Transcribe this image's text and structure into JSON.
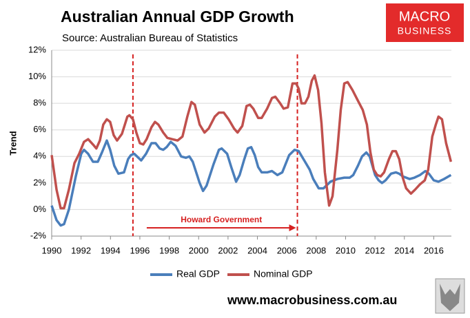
{
  "chart_data": {
    "type": "line",
    "title": "Australian Annual GDP Growth",
    "subtitle": "Source: Australian Bureau of Statistics",
    "y_label": "Trend",
    "logo": [
      "MACRO",
      "BUSINESS"
    ],
    "footer": "www.macrobusiness.com.au",
    "annotation": "Howard Government",
    "vlines": [
      1995.53,
      2006.72
    ],
    "vline_color": "#d62020",
    "xlim": [
      1990,
      2017.2
    ],
    "xticks": [
      1990,
      1992,
      1994,
      1996,
      1998,
      2000,
      2002,
      2004,
      2006,
      2008,
      2010,
      2012,
      2014,
      2016
    ],
    "ylim": [
      -2,
      12
    ],
    "yticks": [
      {
        "value": -2,
        "label": "-2%"
      },
      {
        "value": 0,
        "label": "0%"
      },
      {
        "value": 2,
        "label": "2%"
      },
      {
        "value": 4,
        "label": "4%"
      },
      {
        "value": 6,
        "label": "6%"
      },
      {
        "value": 8,
        "label": "8%"
      },
      {
        "value": 10,
        "label": "10%"
      },
      {
        "value": 12,
        "label": "12%"
      }
    ],
    "grid": true,
    "legend": "bottom",
    "series": [
      {
        "name": "Real GDP",
        "color": "#4a7ebb",
        "x": [
          1990.0,
          1990.33,
          1990.61,
          1990.84,
          1991.17,
          1991.64,
          1992.01,
          1992.2,
          1992.48,
          1992.81,
          1993.14,
          1993.42,
          1993.75,
          1993.98,
          1994.26,
          1994.54,
          1994.92,
          1995.2,
          1995.39,
          1995.62,
          1996.09,
          1996.42,
          1996.79,
          1997.07,
          1997.35,
          1997.59,
          1997.82,
          1998.1,
          1998.43,
          1998.81,
          1999.13,
          1999.37,
          1999.6,
          2000.07,
          2000.3,
          2000.54,
          2001.01,
          2001.38,
          2001.57,
          2001.94,
          2002.22,
          2002.55,
          2002.79,
          2003.11,
          2003.35,
          2003.58,
          2003.82,
          2004.05,
          2004.29,
          2004.66,
          2004.99,
          2005.36,
          2005.69,
          2006.16,
          2006.53,
          2006.81,
          2007.24,
          2007.56,
          2007.8,
          2008.17,
          2008.5,
          2008.97,
          2009.44,
          2009.91,
          2010.28,
          2010.52,
          2010.84,
          2011.12,
          2011.41,
          2011.64,
          2012.01,
          2012.25,
          2012.48,
          2012.72,
          2013.09,
          2013.42,
          2013.65,
          2013.89,
          2014.36,
          2014.68,
          2015.06,
          2015.43,
          2015.67,
          2016.0,
          2016.32,
          2016.7,
          2017.17
        ],
        "values": [
          0.3,
          -0.8,
          -1.2,
          -1.1,
          0.0,
          2.5,
          4.2,
          4.5,
          4.2,
          3.6,
          3.6,
          4.3,
          5.2,
          4.5,
          3.3,
          2.7,
          2.8,
          3.8,
          4.1,
          4.2,
          3.7,
          4.2,
          5.0,
          5.0,
          4.6,
          4.5,
          4.7,
          5.1,
          4.8,
          4.0,
          3.9,
          4.0,
          3.6,
          2.0,
          1.4,
          1.8,
          3.4,
          4.5,
          4.6,
          4.2,
          3.2,
          2.1,
          2.6,
          3.8,
          4.6,
          4.7,
          4.1,
          3.2,
          2.8,
          2.8,
          2.9,
          2.6,
          2.8,
          4.1,
          4.5,
          4.4,
          3.6,
          3.0,
          2.3,
          1.6,
          1.6,
          2.1,
          2.3,
          2.4,
          2.4,
          2.6,
          3.3,
          4.0,
          4.3,
          4.0,
          2.6,
          2.2,
          2.0,
          2.2,
          2.7,
          2.8,
          2.7,
          2.5,
          2.3,
          2.4,
          2.6,
          2.9,
          2.7,
          2.2,
          2.1,
          2.3,
          2.6
        ]
      },
      {
        "name": "Nominal GDP",
        "color": "#c0504d",
        "x": [
          1990.0,
          1990.33,
          1990.61,
          1990.84,
          1991.17,
          1991.55,
          1991.87,
          1992.2,
          1992.48,
          1992.81,
          1993.04,
          1993.28,
          1993.51,
          1993.75,
          1993.98,
          1994.22,
          1994.45,
          1994.78,
          1995.15,
          1995.29,
          1995.53,
          1995.76,
          1996.0,
          1996.23,
          1996.46,
          1996.79,
          1997.03,
          1997.26,
          1997.59,
          1997.87,
          1998.2,
          1998.57,
          1998.9,
          1999.23,
          1999.51,
          1999.74,
          2000.07,
          2000.4,
          2000.68,
          2001.1,
          2001.38,
          2001.71,
          2002.04,
          2002.41,
          2002.65,
          2002.97,
          2003.26,
          2003.49,
          2003.72,
          2004.05,
          2004.29,
          2004.66,
          2004.99,
          2005.22,
          2005.55,
          2005.78,
          2006.07,
          2006.39,
          2006.63,
          2006.81,
          2007.0,
          2007.24,
          2007.47,
          2007.7,
          2007.89,
          2008.13,
          2008.36,
          2008.59,
          2008.88,
          2009.11,
          2009.44,
          2009.67,
          2009.91,
          2010.14,
          2010.47,
          2010.84,
          2011.17,
          2011.45,
          2011.69,
          2011.92,
          2012.15,
          2012.39,
          2012.62,
          2012.95,
          2013.19,
          2013.42,
          2013.65,
          2013.89,
          2014.12,
          2014.45,
          2014.73,
          2015.06,
          2015.39,
          2015.62,
          2015.9,
          2016.14,
          2016.32,
          2016.56,
          2016.84,
          2017.17
        ],
        "values": [
          4.1,
          1.5,
          0.1,
          0.1,
          1.5,
          3.5,
          4.2,
          5.1,
          5.3,
          4.9,
          4.6,
          5.2,
          6.4,
          6.8,
          6.6,
          5.6,
          5.2,
          5.7,
          7.0,
          7.1,
          6.8,
          5.8,
          5.0,
          4.9,
          5.3,
          6.2,
          6.6,
          6.4,
          5.8,
          5.4,
          5.3,
          5.2,
          5.5,
          7.0,
          8.1,
          7.9,
          6.4,
          5.8,
          6.1,
          7.0,
          7.3,
          7.3,
          6.8,
          6.1,
          5.8,
          6.3,
          7.8,
          7.9,
          7.6,
          6.9,
          6.9,
          7.6,
          8.4,
          8.5,
          8.0,
          7.6,
          7.7,
          9.5,
          9.5,
          9.1,
          8.0,
          8.0,
          8.5,
          9.7,
          10.1,
          9.0,
          6.5,
          2.8,
          0.3,
          1.0,
          4.5,
          7.5,
          9.5,
          9.6,
          9.0,
          8.2,
          7.5,
          6.4,
          4.3,
          3.0,
          2.6,
          2.5,
          2.8,
          3.8,
          4.4,
          4.4,
          3.8,
          2.4,
          1.6,
          1.2,
          1.5,
          1.9,
          2.2,
          3.0,
          5.5,
          6.4,
          7.0,
          6.8,
          5.0,
          3.6
        ]
      }
    ]
  }
}
